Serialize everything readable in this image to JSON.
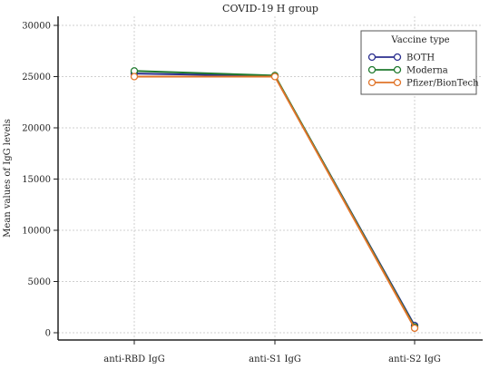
{
  "chart_data": {
    "type": "line",
    "title": "COVID-19 H group",
    "xlabel": "",
    "ylabel": "Mean values of IgG levels",
    "categories": [
      "anti-RBD IgG",
      "anti-S1 IgG",
      "anti-S2 IgG"
    ],
    "ylim": [
      0,
      30000
    ],
    "yticks": [
      0,
      5000,
      10000,
      15000,
      20000,
      25000,
      30000
    ],
    "grid": true,
    "legend": {
      "title": "Vaccine type",
      "placement": "top-right"
    },
    "series": [
      {
        "name": "BOTH",
        "color": "#2b2f8f",
        "values": [
          25300,
          25050,
          700
        ]
      },
      {
        "name": "Moderna",
        "color": "#1f7a2e",
        "values": [
          25550,
          25100,
          550
        ]
      },
      {
        "name": "Pfizer/BionTech",
        "color": "#e0742a",
        "values": [
          25000,
          25000,
          450
        ]
      }
    ]
  }
}
